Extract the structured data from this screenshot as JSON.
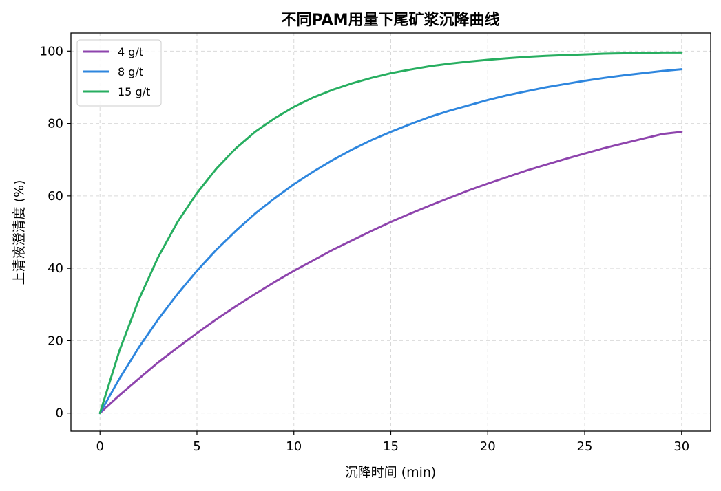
{
  "chart_data": {
    "type": "line",
    "title": "不同PAM用量下尾矿浆沉降曲线",
    "xlabel": "沉降时间 (min)",
    "ylabel": "上清液澄清度 (%)",
    "xlim": [
      -1.5,
      31.5
    ],
    "ylim": [
      -5,
      105
    ],
    "xticks": [
      0,
      5,
      10,
      15,
      20,
      25,
      30
    ],
    "yticks": [
      0,
      20,
      40,
      60,
      80,
      100
    ],
    "grid": true,
    "legend_position": "top-left",
    "x": [
      0,
      1,
      2,
      3,
      4,
      5,
      6,
      7,
      8,
      9,
      10,
      11,
      12,
      13,
      14,
      15,
      16,
      17,
      18,
      19,
      20,
      21,
      22,
      23,
      24,
      25,
      26,
      27,
      28,
      29,
      30
    ],
    "series": [
      {
        "name": "4 g/t",
        "color": "#8e44ad",
        "values": [
          0.0,
          4.9,
          9.5,
          14.0,
          18.1,
          22.1,
          25.9,
          29.5,
          32.9,
          36.2,
          39.3,
          42.2,
          45.1,
          47.7,
          50.3,
          52.8,
          55.1,
          57.3,
          59.4,
          61.5,
          63.4,
          65.2,
          67.0,
          68.6,
          70.2,
          71.7,
          73.2,
          74.5,
          75.8,
          77.1,
          77.7
        ]
      },
      {
        "name": "8 g/t",
        "color": "#2e86de",
        "values": [
          0.0,
          9.5,
          18.1,
          25.9,
          32.9,
          39.3,
          45.1,
          50.3,
          55.1,
          59.3,
          63.2,
          66.7,
          69.9,
          72.8,
          75.4,
          77.7,
          79.8,
          81.8,
          83.5,
          85.0,
          86.5,
          87.8,
          88.9,
          90.0,
          90.9,
          91.8,
          92.6,
          93.3,
          93.9,
          94.5,
          95.0
        ]
      },
      {
        "name": "15 g/t",
        "color": "#27ae60",
        "values": [
          0.0,
          17.2,
          31.3,
          43.1,
          52.8,
          60.8,
          67.5,
          73.1,
          77.7,
          81.4,
          84.6,
          87.2,
          89.3,
          91.1,
          92.6,
          93.9,
          94.9,
          95.8,
          96.5,
          97.1,
          97.6,
          98.0,
          98.4,
          98.7,
          98.9,
          99.1,
          99.3,
          99.4,
          99.5,
          99.6,
          99.6
        ]
      }
    ]
  }
}
